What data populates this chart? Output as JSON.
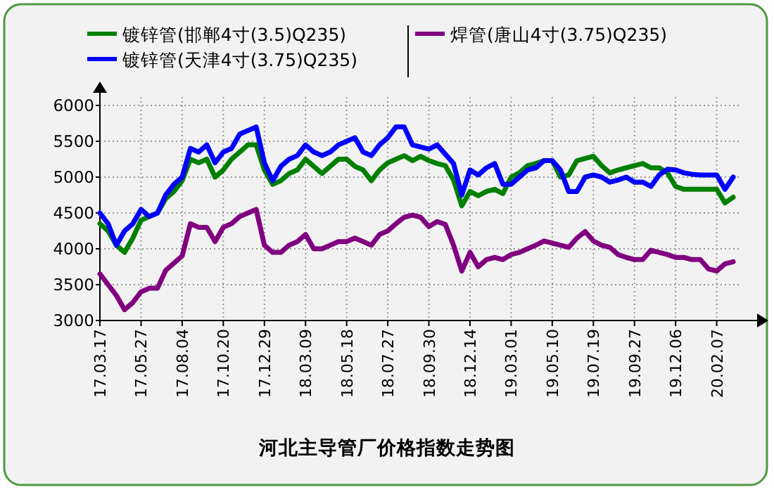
{
  "chart_data": {
    "type": "line",
    "title": "河北主导管厂价格指数走势图",
    "categories": [
      "17.03.17",
      null,
      null,
      null,
      null,
      "17.05.27",
      null,
      null,
      null,
      null,
      "17.08.04",
      null,
      null,
      null,
      null,
      "17.10.20",
      null,
      null,
      null,
      null,
      "17.12.29",
      null,
      null,
      null,
      null,
      "18.03.09",
      null,
      null,
      null,
      null,
      "18.05.18",
      null,
      null,
      null,
      null,
      "18.07.27",
      null,
      null,
      null,
      null,
      "18.09.30",
      null,
      null,
      null,
      null,
      "18.12.14",
      null,
      null,
      null,
      null,
      "19.03.01",
      null,
      null,
      null,
      null,
      "19.05.10",
      null,
      null,
      null,
      null,
      "19.07.19",
      null,
      null,
      null,
      null,
      "19.09.27",
      null,
      null,
      null,
      null,
      "19.12.06",
      null,
      null,
      null,
      null,
      "20.02.07",
      null,
      null
    ],
    "series": [
      {
        "name": "镀锌管(邯郸4寸(3.5)Q235)",
        "color": "#008000",
        "values": [
          4350,
          4250,
          4050,
          3950,
          4150,
          4400,
          4450,
          4500,
          4700,
          4800,
          4950,
          5250,
          5200,
          5250,
          5000,
          5100,
          5250,
          5350,
          5450,
          5450,
          5100,
          4900,
          4950,
          5050,
          5100,
          5250,
          5150,
          5050,
          5150,
          5250,
          5250,
          5150,
          5100,
          4950,
          5100,
          5200,
          5250,
          5300,
          5230,
          5290,
          5230,
          5190,
          5160,
          4960,
          4600,
          4800,
          4740,
          4800,
          4830,
          4770,
          5000,
          5060,
          5160,
          5190,
          5230,
          5230,
          5000,
          5030,
          5230,
          5260,
          5290,
          5160,
          5060,
          5100,
          5130,
          5160,
          5190,
          5130,
          5130,
          5060,
          4870,
          4830,
          4830,
          4830,
          4830,
          4830,
          4640,
          4720
        ]
      },
      {
        "name": "镀锌管(天津4寸(3.75)Q235)",
        "color": "#0000ff",
        "values": [
          4500,
          4350,
          4050,
          4250,
          4350,
          4550,
          4450,
          4500,
          4750,
          4900,
          5000,
          5400,
          5350,
          5450,
          5200,
          5350,
          5400,
          5600,
          5650,
          5700,
          5200,
          4950,
          5150,
          5250,
          5300,
          5450,
          5350,
          5300,
          5350,
          5450,
          5500,
          5550,
          5350,
          5300,
          5450,
          5550,
          5700,
          5700,
          5450,
          5420,
          5390,
          5450,
          5320,
          5190,
          4750,
          5100,
          5030,
          5130,
          5190,
          4900,
          4900,
          5000,
          5100,
          5130,
          5230,
          5230,
          5100,
          4800,
          4800,
          5000,
          5030,
          5000,
          4930,
          4960,
          5000,
          4930,
          4930,
          4870,
          5030,
          5110,
          5100,
          5060,
          5040,
          5030,
          5030,
          5030,
          4830,
          5000
        ]
      },
      {
        "name": "焊管(唐山4寸(3.75)Q235)",
        "color": "#800080",
        "values": [
          3650,
          3500,
          3350,
          3150,
          3250,
          3400,
          3450,
          3450,
          3700,
          3800,
          3900,
          4350,
          4300,
          4300,
          4100,
          4300,
          4350,
          4450,
          4500,
          4550,
          4050,
          3950,
          3950,
          4050,
          4100,
          4200,
          4000,
          4000,
          4050,
          4100,
          4100,
          4150,
          4100,
          4050,
          4200,
          4250,
          4350,
          4440,
          4470,
          4440,
          4310,
          4380,
          4340,
          4050,
          3690,
          3950,
          3750,
          3850,
          3880,
          3850,
          3920,
          3950,
          4000,
          4050,
          4110,
          4080,
          4050,
          4020,
          4150,
          4240,
          4110,
          4050,
          4020,
          3920,
          3880,
          3850,
          3850,
          3980,
          3950,
          3920,
          3880,
          3880,
          3850,
          3850,
          3720,
          3690,
          3790,
          3820
        ]
      }
    ],
    "ylim": [
      3000,
      6000
    ],
    "yticks": [
      3000,
      3500,
      4000,
      4500,
      5000,
      5500,
      6000
    ],
    "grid": true,
    "legend": "top",
    "line_style": "solid"
  }
}
